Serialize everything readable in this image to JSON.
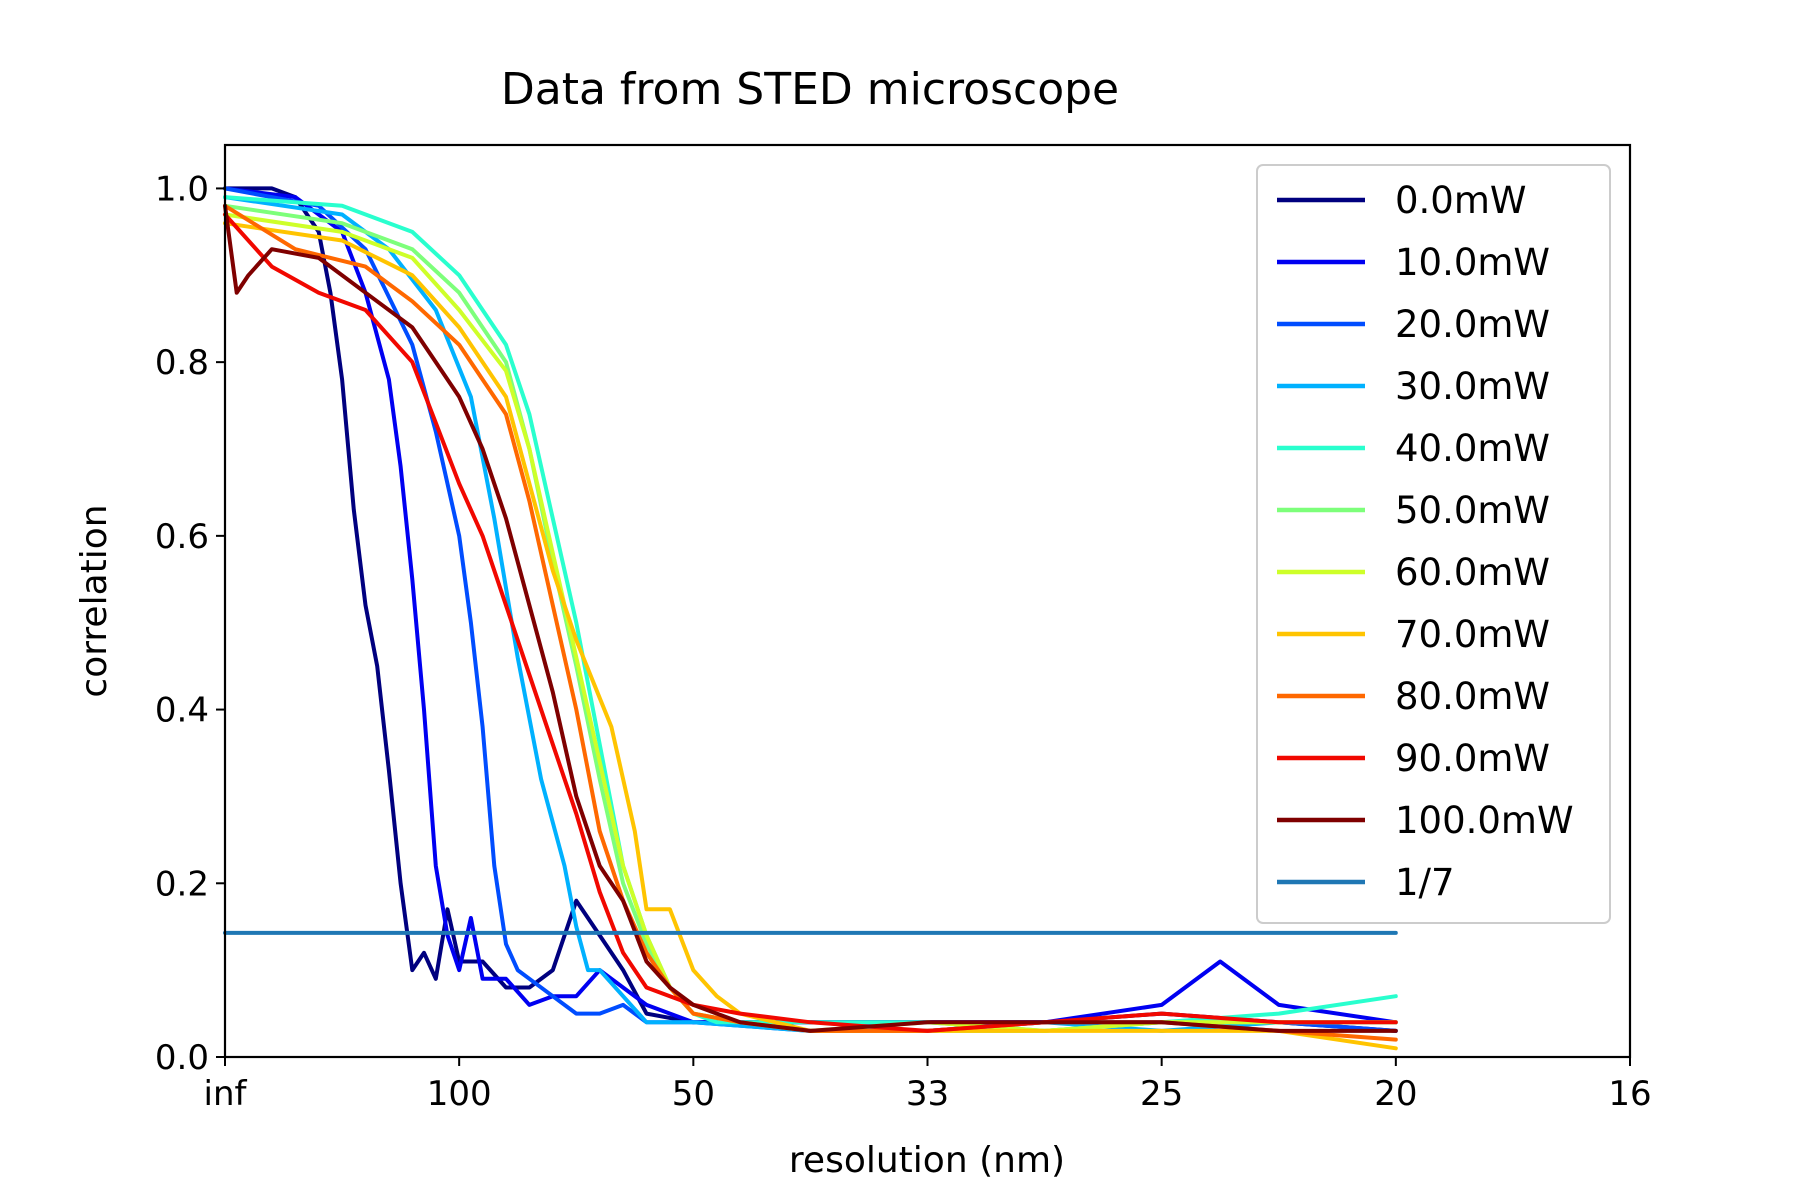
{
  "chart_data": {
    "type": "line",
    "title": "Data from STED microscope",
    "xlabel": "resolution (nm)",
    "ylabel": "correlation",
    "x_axis": {
      "ticks": [
        {
          "pos": 0.0,
          "label": "inf"
        },
        {
          "pos": 0.01,
          "label": "100"
        },
        {
          "pos": 0.02,
          "label": "50"
        },
        {
          "pos": 0.03,
          "label": "33"
        },
        {
          "pos": 0.04,
          "label": "25"
        },
        {
          "pos": 0.05,
          "label": "20"
        },
        {
          "pos": 0.06,
          "label": "16"
        }
      ],
      "range": [
        0.0,
        0.06
      ],
      "scale": "reciprocal (1/resolution)"
    },
    "y_axis": {
      "ticks": [
        0.0,
        0.2,
        0.4,
        0.6,
        0.8,
        1.0
      ],
      "tick_labels": [
        "0.0",
        "0.2",
        "0.4",
        "0.6",
        "0.8",
        "1.0"
      ],
      "range": [
        0.0,
        1.05
      ]
    },
    "grid": false,
    "legend_position": "top-right",
    "series": [
      {
        "name": "0.0mW",
        "color": "#00007f",
        "x": [
          0,
          0.002,
          0.003,
          0.004,
          0.0045,
          0.005,
          0.0055,
          0.006,
          0.0065,
          0.007,
          0.0075,
          0.008,
          0.0085,
          0.009,
          0.0095,
          0.01,
          0.011,
          0.012,
          0.013,
          0.014,
          0.015,
          0.016,
          0.017,
          0.018,
          0.02,
          0.025,
          0.03,
          0.035,
          0.04,
          0.045,
          0.05
        ],
        "y": [
          1.0,
          1.0,
          0.99,
          0.95,
          0.88,
          0.78,
          0.63,
          0.52,
          0.45,
          0.33,
          0.2,
          0.1,
          0.12,
          0.09,
          0.17,
          0.11,
          0.11,
          0.08,
          0.08,
          0.1,
          0.18,
          0.14,
          0.1,
          0.05,
          0.04,
          0.04,
          0.04,
          0.04,
          0.05,
          0.04,
          0.03
        ]
      },
      {
        "name": "10.0mW",
        "color": "#0000f1",
        "x": [
          0,
          0.003,
          0.005,
          0.006,
          0.007,
          0.0075,
          0.008,
          0.0085,
          0.009,
          0.0095,
          0.01,
          0.0105,
          0.011,
          0.012,
          0.013,
          0.014,
          0.015,
          0.016,
          0.018,
          0.02,
          0.025,
          0.03,
          0.035,
          0.04,
          0.0425,
          0.045,
          0.05
        ],
        "y": [
          1.0,
          0.99,
          0.95,
          0.88,
          0.78,
          0.68,
          0.55,
          0.4,
          0.22,
          0.14,
          0.1,
          0.16,
          0.09,
          0.09,
          0.06,
          0.07,
          0.07,
          0.1,
          0.06,
          0.04,
          0.04,
          0.04,
          0.04,
          0.06,
          0.11,
          0.06,
          0.04
        ]
      },
      {
        "name": "20.0mW",
        "color": "#004dff",
        "x": [
          0,
          0.004,
          0.006,
          0.008,
          0.009,
          0.01,
          0.0105,
          0.011,
          0.0115,
          0.012,
          0.0125,
          0.013,
          0.014,
          0.015,
          0.016,
          0.017,
          0.018,
          0.02,
          0.025,
          0.03,
          0.035,
          0.04,
          0.045,
          0.05
        ],
        "y": [
          1.0,
          0.98,
          0.93,
          0.82,
          0.72,
          0.6,
          0.5,
          0.38,
          0.22,
          0.13,
          0.1,
          0.09,
          0.07,
          0.05,
          0.05,
          0.06,
          0.04,
          0.04,
          0.03,
          0.03,
          0.04,
          0.04,
          0.04,
          0.03
        ]
      },
      {
        "name": "30.0mW",
        "color": "#00b1ff",
        "x": [
          0,
          0.005,
          0.007,
          0.009,
          0.0105,
          0.0115,
          0.0125,
          0.0135,
          0.0145,
          0.015,
          0.0155,
          0.016,
          0.017,
          0.018,
          0.019,
          0.02,
          0.025,
          0.03,
          0.035,
          0.04,
          0.045,
          0.05
        ],
        "y": [
          0.99,
          0.97,
          0.93,
          0.86,
          0.76,
          0.62,
          0.46,
          0.32,
          0.22,
          0.15,
          0.1,
          0.1,
          0.07,
          0.04,
          0.04,
          0.04,
          0.03,
          0.03,
          0.04,
          0.03,
          0.04,
          0.04
        ]
      },
      {
        "name": "40.0mW",
        "color": "#29ffce",
        "x": [
          0,
          0.005,
          0.008,
          0.01,
          0.012,
          0.013,
          0.014,
          0.015,
          0.016,
          0.017,
          0.018,
          0.019,
          0.02,
          0.021,
          0.022,
          0.025,
          0.03,
          0.035,
          0.04,
          0.045,
          0.05
        ],
        "y": [
          0.99,
          0.98,
          0.95,
          0.9,
          0.82,
          0.74,
          0.62,
          0.5,
          0.36,
          0.22,
          0.14,
          0.08,
          0.05,
          0.04,
          0.04,
          0.04,
          0.04,
          0.03,
          0.04,
          0.05,
          0.07
        ]
      },
      {
        "name": "50.0mW",
        "color": "#7dff7a",
        "x": [
          0,
          0.005,
          0.008,
          0.01,
          0.012,
          0.013,
          0.014,
          0.015,
          0.016,
          0.017,
          0.018,
          0.019,
          0.02,
          0.022,
          0.025,
          0.03,
          0.035,
          0.04,
          0.045,
          0.05
        ],
        "y": [
          0.98,
          0.96,
          0.93,
          0.88,
          0.8,
          0.7,
          0.57,
          0.45,
          0.32,
          0.2,
          0.13,
          0.08,
          0.05,
          0.04,
          0.03,
          0.03,
          0.03,
          0.04,
          0.04,
          0.04
        ]
      },
      {
        "name": "60.0mW",
        "color": "#ceff29",
        "x": [
          0,
          0.005,
          0.008,
          0.01,
          0.012,
          0.013,
          0.014,
          0.015,
          0.016,
          0.017,
          0.018,
          0.019,
          0.02,
          0.022,
          0.025,
          0.03,
          0.035,
          0.04,
          0.045,
          0.05
        ],
        "y": [
          0.97,
          0.95,
          0.92,
          0.86,
          0.79,
          0.7,
          0.58,
          0.46,
          0.34,
          0.22,
          0.14,
          0.08,
          0.05,
          0.04,
          0.03,
          0.04,
          0.03,
          0.04,
          0.04,
          0.04
        ]
      },
      {
        "name": "70.0mW",
        "color": "#ffc400",
        "x": [
          0,
          0.005,
          0.008,
          0.01,
          0.012,
          0.013,
          0.014,
          0.015,
          0.0165,
          0.0175,
          0.018,
          0.019,
          0.02,
          0.021,
          0.022,
          0.025,
          0.03,
          0.035,
          0.04,
          0.045,
          0.05
        ],
        "y": [
          0.96,
          0.94,
          0.9,
          0.84,
          0.76,
          0.66,
          0.56,
          0.48,
          0.38,
          0.26,
          0.17,
          0.17,
          0.1,
          0.07,
          0.05,
          0.03,
          0.03,
          0.03,
          0.03,
          0.03,
          0.01
        ]
      },
      {
        "name": "80.0mW",
        "color": "#ff6800",
        "x": [
          0,
          0.003,
          0.006,
          0.008,
          0.01,
          0.012,
          0.013,
          0.014,
          0.015,
          0.016,
          0.017,
          0.018,
          0.019,
          0.02,
          0.022,
          0.025,
          0.03,
          0.035,
          0.04,
          0.045,
          0.05
        ],
        "y": [
          0.98,
          0.93,
          0.91,
          0.87,
          0.82,
          0.74,
          0.64,
          0.52,
          0.4,
          0.26,
          0.18,
          0.12,
          0.08,
          0.05,
          0.04,
          0.03,
          0.03,
          0.04,
          0.04,
          0.03,
          0.02
        ]
      },
      {
        "name": "90.0mW",
        "color": "#f10800",
        "x": [
          0,
          0.002,
          0.004,
          0.006,
          0.008,
          0.009,
          0.01,
          0.011,
          0.012,
          0.013,
          0.014,
          0.015,
          0.016,
          0.017,
          0.018,
          0.019,
          0.02,
          0.022,
          0.025,
          0.03,
          0.035,
          0.04,
          0.045,
          0.05
        ],
        "y": [
          0.97,
          0.91,
          0.88,
          0.86,
          0.8,
          0.73,
          0.66,
          0.6,
          0.52,
          0.44,
          0.36,
          0.28,
          0.19,
          0.12,
          0.08,
          0.07,
          0.06,
          0.05,
          0.04,
          0.03,
          0.04,
          0.05,
          0.04,
          0.04
        ]
      },
      {
        "name": "100.0mW",
        "color": "#7f0000",
        "x": [
          0,
          0.0005,
          0.001,
          0.002,
          0.004,
          0.006,
          0.008,
          0.009,
          0.01,
          0.011,
          0.012,
          0.013,
          0.014,
          0.015,
          0.016,
          0.017,
          0.018,
          0.019,
          0.02,
          0.021,
          0.022,
          0.025,
          0.03,
          0.035,
          0.04,
          0.045,
          0.05
        ],
        "y": [
          0.98,
          0.88,
          0.9,
          0.93,
          0.92,
          0.88,
          0.84,
          0.8,
          0.76,
          0.7,
          0.62,
          0.52,
          0.42,
          0.3,
          0.22,
          0.18,
          0.11,
          0.08,
          0.06,
          0.05,
          0.04,
          0.03,
          0.04,
          0.04,
          0.04,
          0.03,
          0.03
        ]
      },
      {
        "name": "1/7",
        "color": "#1f77b4",
        "x": [
          0,
          0.05
        ],
        "y": [
          0.1429,
          0.1429
        ]
      }
    ]
  }
}
